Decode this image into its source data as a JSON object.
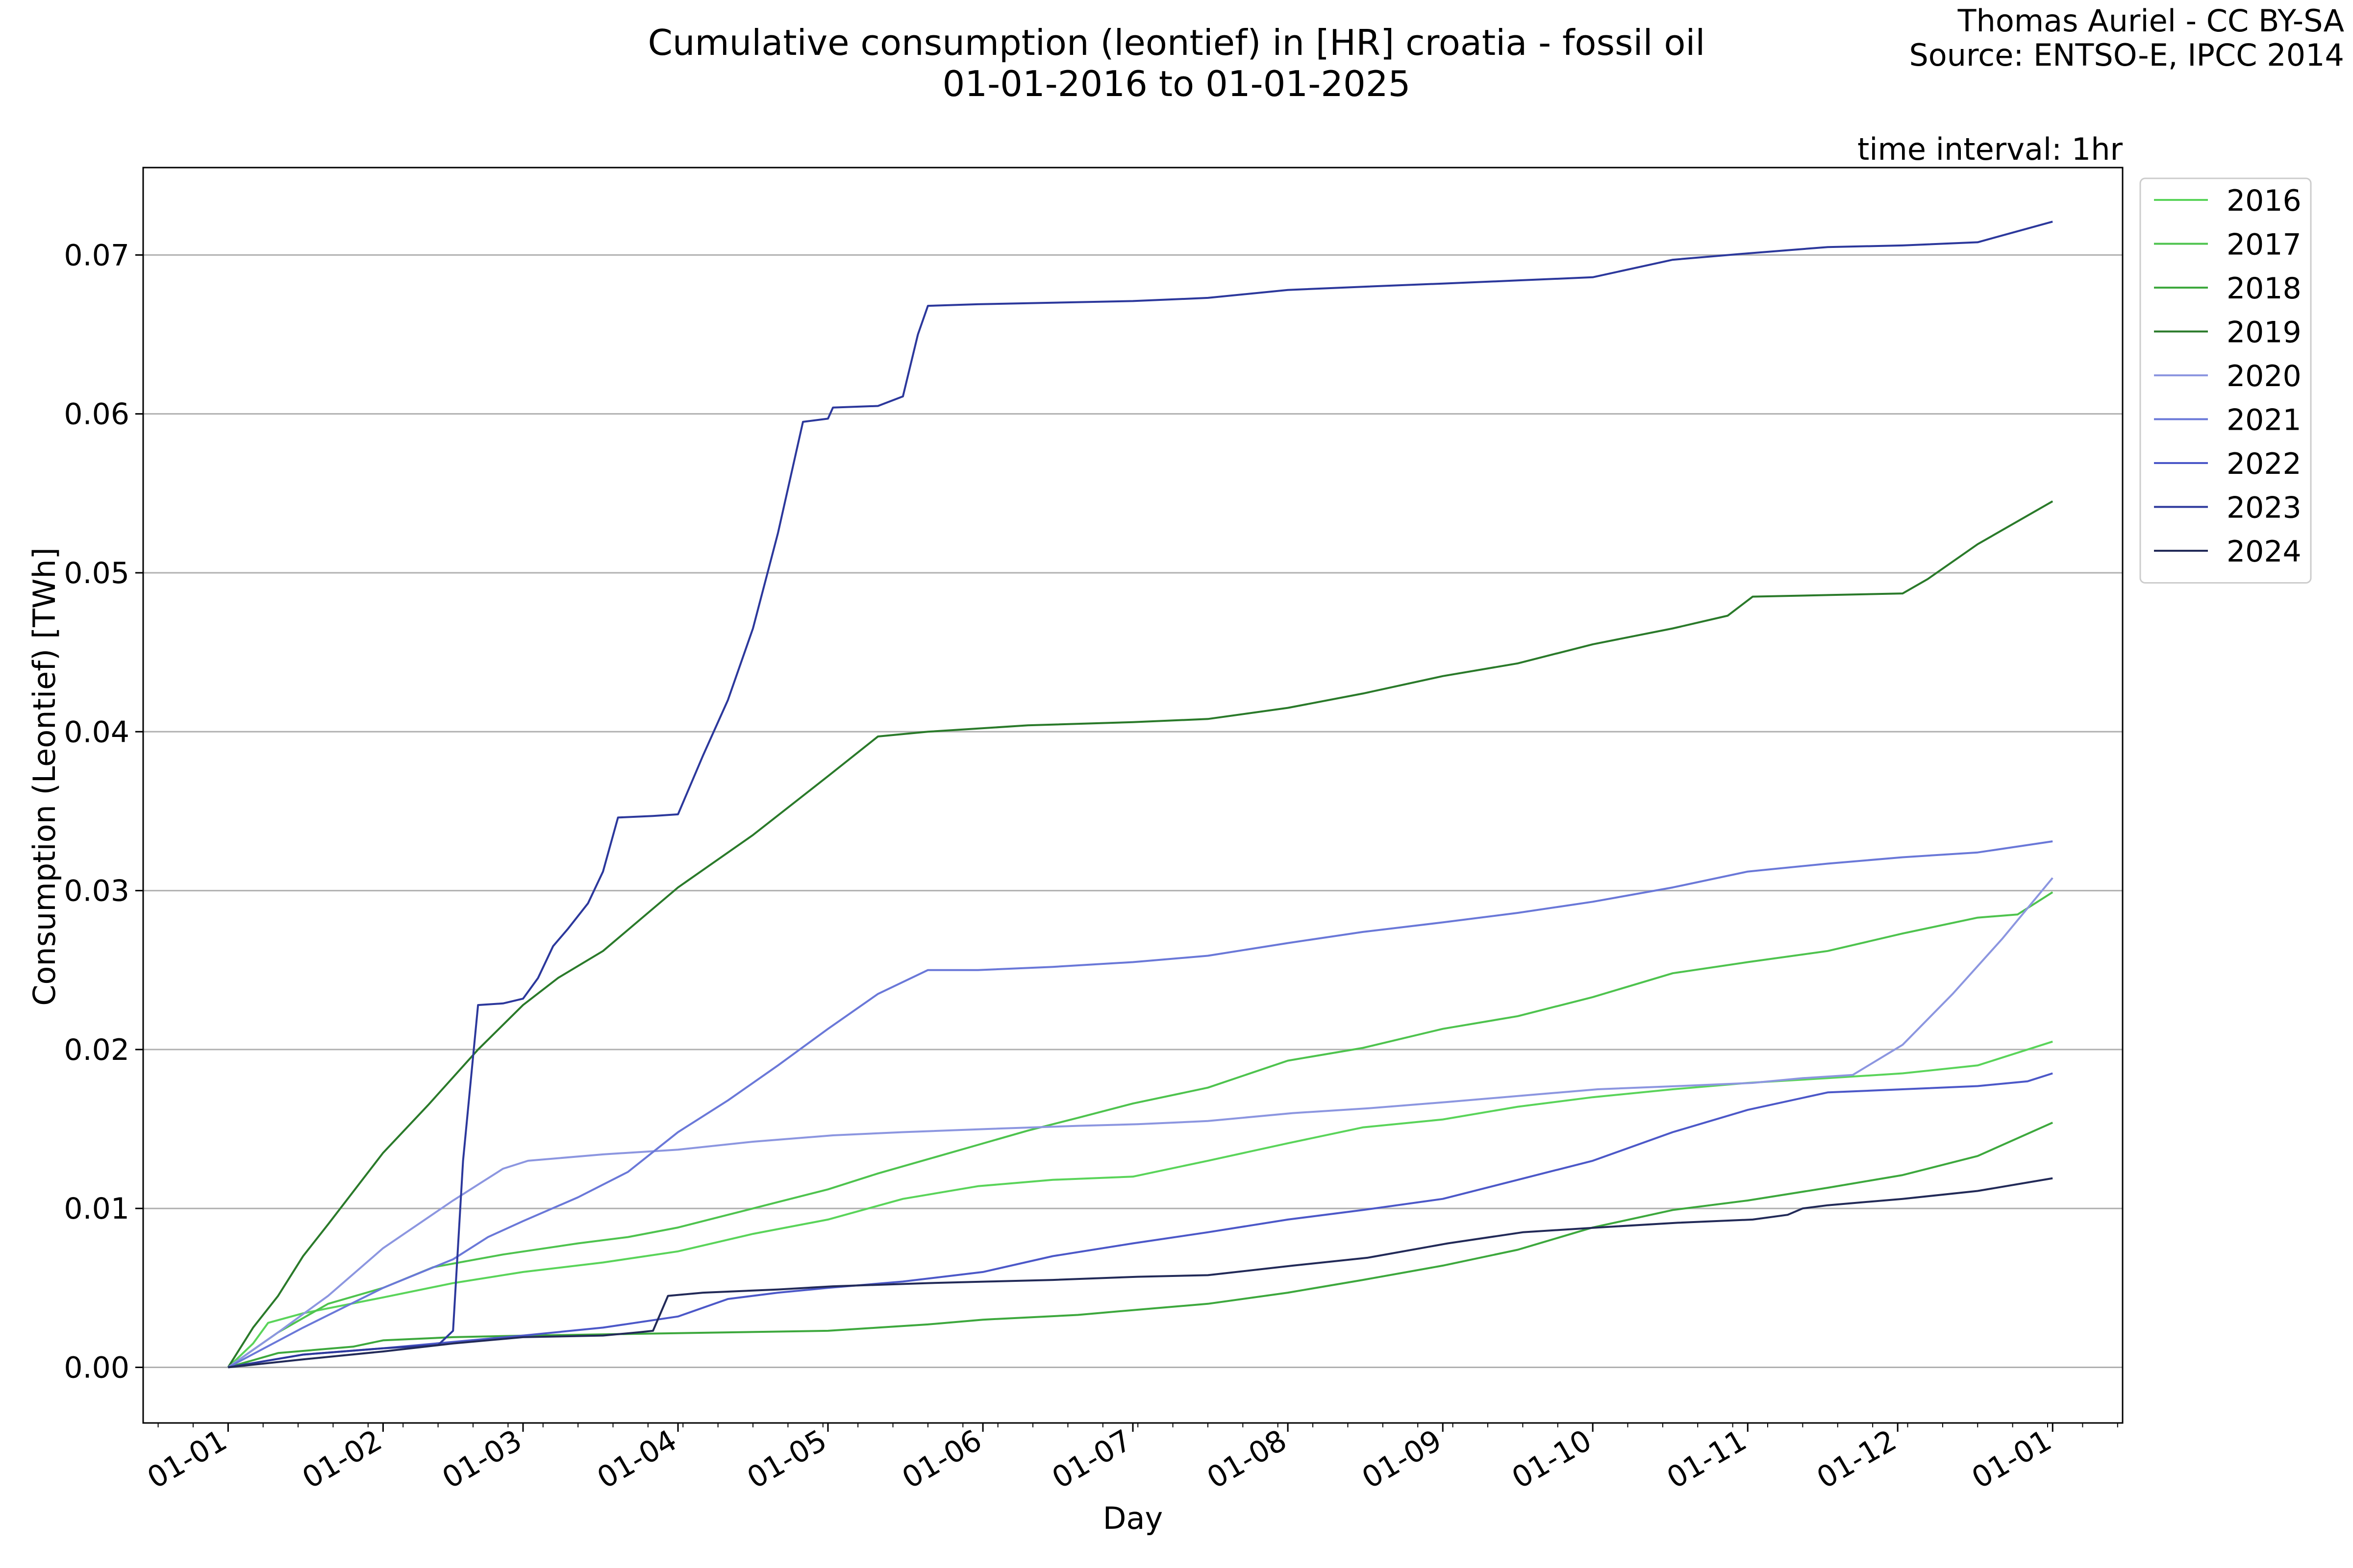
{
  "chart_data": {
    "type": "line",
    "title_line1": "Cumulative consumption (leontief) in [HR] croatia - fossil oil",
    "title_line2": "01-01-2016 to 01-01-2025",
    "credit_line1": "Thomas Auriel - CC BY-SA",
    "credit_line2": "Source: ENTSO-E, IPCC 2014",
    "interval_label": "time interval: 1hr",
    "xlabel": "Day",
    "ylabel": "Consumption (Leontief) [TWh]",
    "x_ticks": [
      "01-01",
      "01-02",
      "01-03",
      "01-04",
      "01-05",
      "01-06",
      "01-07",
      "01-08",
      "01-09",
      "01-10",
      "01-11",
      "01-12",
      "01-01"
    ],
    "y_ticks": [
      "0.00",
      "0.01",
      "0.02",
      "0.03",
      "0.04",
      "0.05",
      "0.06",
      "0.07"
    ],
    "xlim": [
      -17,
      379
    ],
    "ylim": [
      -0.0035,
      0.0755
    ],
    "grid": "horizontal",
    "legend_position": "upper-right-outside",
    "series": [
      {
        "name": "2016",
        "color": "#5ad45a",
        "points": [
          [
            0,
            0
          ],
          [
            5,
            0.0015
          ],
          [
            8,
            0.0028
          ],
          [
            15,
            0.0034
          ],
          [
            31,
            0.0044
          ],
          [
            45,
            0.0053
          ],
          [
            59,
            0.006
          ],
          [
            75,
            0.0066
          ],
          [
            90,
            0.0073
          ],
          [
            105,
            0.0084
          ],
          [
            120,
            0.0093
          ],
          [
            135,
            0.0106
          ],
          [
            150,
            0.0114
          ],
          [
            165,
            0.0118
          ],
          [
            181,
            0.012
          ],
          [
            196,
            0.013
          ],
          [
            212,
            0.0141
          ],
          [
            227,
            0.0151
          ],
          [
            243,
            0.0156
          ],
          [
            258,
            0.0164
          ],
          [
            273,
            0.017
          ],
          [
            289,
            0.0175
          ],
          [
            304,
            0.0179
          ],
          [
            320,
            0.0182
          ],
          [
            335,
            0.0185
          ],
          [
            350,
            0.019
          ],
          [
            365,
            0.0205
          ]
        ]
      },
      {
        "name": "2017",
        "color": "#4ec34e",
        "points": [
          [
            0,
            0
          ],
          [
            10,
            0.0022
          ],
          [
            20,
            0.004
          ],
          [
            31,
            0.005
          ],
          [
            41,
            0.0063
          ],
          [
            55,
            0.0071
          ],
          [
            70,
            0.0078
          ],
          [
            80,
            0.0082
          ],
          [
            90,
            0.0088
          ],
          [
            100,
            0.0096
          ],
          [
            110,
            0.0104
          ],
          [
            120,
            0.0112
          ],
          [
            130,
            0.0122
          ],
          [
            140,
            0.0131
          ],
          [
            150,
            0.014
          ],
          [
            160,
            0.0149
          ],
          [
            170,
            0.0157
          ],
          [
            181,
            0.0166
          ],
          [
            196,
            0.0176
          ],
          [
            212,
            0.0193
          ],
          [
            227,
            0.0201
          ],
          [
            243,
            0.0213
          ],
          [
            258,
            0.0221
          ],
          [
            273,
            0.0233
          ],
          [
            289,
            0.0248
          ],
          [
            304,
            0.0255
          ],
          [
            320,
            0.0262
          ],
          [
            335,
            0.0273
          ],
          [
            350,
            0.0283
          ],
          [
            358,
            0.0285
          ],
          [
            365,
            0.0299
          ]
        ]
      },
      {
        "name": "2018",
        "color": "#3da83d",
        "points": [
          [
            0,
            0
          ],
          [
            10,
            0.0009
          ],
          [
            25,
            0.0013
          ],
          [
            31,
            0.0017
          ],
          [
            45,
            0.0019
          ],
          [
            60,
            0.002
          ],
          [
            80,
            0.0021
          ],
          [
            100,
            0.0022
          ],
          [
            120,
            0.0023
          ],
          [
            130,
            0.0025
          ],
          [
            140,
            0.0027
          ],
          [
            151,
            0.003
          ],
          [
            170,
            0.0033
          ],
          [
            181,
            0.0036
          ],
          [
            196,
            0.004
          ],
          [
            212,
            0.0047
          ],
          [
            227,
            0.0055
          ],
          [
            243,
            0.0064
          ],
          [
            258,
            0.0074
          ],
          [
            273,
            0.0088
          ],
          [
            289,
            0.0099
          ],
          [
            304,
            0.0105
          ],
          [
            320,
            0.0113
          ],
          [
            335,
            0.0121
          ],
          [
            350,
            0.0133
          ],
          [
            365,
            0.0154
          ]
        ]
      },
      {
        "name": "2019",
        "color": "#2a7a2a",
        "points": [
          [
            0,
            0
          ],
          [
            5,
            0.0025
          ],
          [
            10,
            0.0045
          ],
          [
            15,
            0.007
          ],
          [
            20,
            0.009
          ],
          [
            31,
            0.0135
          ],
          [
            40,
            0.0165
          ],
          [
            50,
            0.02
          ],
          [
            59,
            0.0228
          ],
          [
            66,
            0.0245
          ],
          [
            75,
            0.0262
          ],
          [
            90,
            0.0302
          ],
          [
            105,
            0.0335
          ],
          [
            120,
            0.0372
          ],
          [
            130,
            0.0397
          ],
          [
            140,
            0.04
          ],
          [
            160,
            0.0404
          ],
          [
            181,
            0.0406
          ],
          [
            196,
            0.0408
          ],
          [
            212,
            0.0415
          ],
          [
            227,
            0.0424
          ],
          [
            243,
            0.0435
          ],
          [
            258,
            0.0443
          ],
          [
            273,
            0.0455
          ],
          [
            289,
            0.0465
          ],
          [
            300,
            0.0473
          ],
          [
            305,
            0.0485
          ],
          [
            320,
            0.0486
          ],
          [
            335,
            0.0487
          ],
          [
            340,
            0.0496
          ],
          [
            350,
            0.0518
          ],
          [
            365,
            0.0545
          ]
        ]
      },
      {
        "name": "2020",
        "color": "#8c96e0",
        "points": [
          [
            0,
            0
          ],
          [
            10,
            0.0022
          ],
          [
            20,
            0.0045
          ],
          [
            31,
            0.0075
          ],
          [
            45,
            0.0105
          ],
          [
            55,
            0.0125
          ],
          [
            60,
            0.013
          ],
          [
            75,
            0.0134
          ],
          [
            90,
            0.0137
          ],
          [
            105,
            0.0142
          ],
          [
            121,
            0.0146
          ],
          [
            135,
            0.0148
          ],
          [
            152,
            0.015
          ],
          [
            170,
            0.0152
          ],
          [
            182,
            0.0153
          ],
          [
            196,
            0.0155
          ],
          [
            213,
            0.016
          ],
          [
            228,
            0.0163
          ],
          [
            244,
            0.0167
          ],
          [
            259,
            0.0171
          ],
          [
            274,
            0.0175
          ],
          [
            290,
            0.0177
          ],
          [
            305,
            0.0179
          ],
          [
            315,
            0.0182
          ],
          [
            325,
            0.0184
          ],
          [
            335,
            0.0203
          ],
          [
            345,
            0.0235
          ],
          [
            355,
            0.027
          ],
          [
            365,
            0.0308
          ]
        ]
      },
      {
        "name": "2021",
        "color": "#6a78d8",
        "points": [
          [
            0,
            0
          ],
          [
            15,
            0.0025
          ],
          [
            31,
            0.005
          ],
          [
            45,
            0.0068
          ],
          [
            52,
            0.0082
          ],
          [
            59,
            0.0092
          ],
          [
            70,
            0.0107
          ],
          [
            80,
            0.0123
          ],
          [
            90,
            0.0148
          ],
          [
            100,
            0.0168
          ],
          [
            110,
            0.019
          ],
          [
            120,
            0.0213
          ],
          [
            130,
            0.0235
          ],
          [
            140,
            0.025
          ],
          [
            150,
            0.025
          ],
          [
            165,
            0.0252
          ],
          [
            181,
            0.0255
          ],
          [
            196,
            0.0259
          ],
          [
            212,
            0.0267
          ],
          [
            227,
            0.0274
          ],
          [
            243,
            0.028
          ],
          [
            258,
            0.0286
          ],
          [
            273,
            0.0293
          ],
          [
            289,
            0.0302
          ],
          [
            304,
            0.0312
          ],
          [
            320,
            0.0317
          ],
          [
            335,
            0.0321
          ],
          [
            350,
            0.0324
          ],
          [
            365,
            0.0331
          ]
        ]
      },
      {
        "name": "2022",
        "color": "#4c58c8",
        "points": [
          [
            0,
            0
          ],
          [
            15,
            0.0008
          ],
          [
            31,
            0.0012
          ],
          [
            45,
            0.0016
          ],
          [
            59,
            0.002
          ],
          [
            75,
            0.0025
          ],
          [
            90,
            0.0032
          ],
          [
            100,
            0.0043
          ],
          [
            110,
            0.0047
          ],
          [
            120,
            0.005
          ],
          [
            135,
            0.0054
          ],
          [
            151,
            0.006
          ],
          [
            165,
            0.007
          ],
          [
            181,
            0.0078
          ],
          [
            196,
            0.0085
          ],
          [
            212,
            0.0093
          ],
          [
            227,
            0.0099
          ],
          [
            243,
            0.0106
          ],
          [
            258,
            0.0118
          ],
          [
            273,
            0.013
          ],
          [
            289,
            0.0148
          ],
          [
            304,
            0.0162
          ],
          [
            320,
            0.0173
          ],
          [
            335,
            0.0175
          ],
          [
            350,
            0.0177
          ],
          [
            360,
            0.018
          ],
          [
            365,
            0.0185
          ]
        ]
      },
      {
        "name": "2023",
        "color": "#2c389c",
        "points": [
          [
            0,
            0
          ],
          [
            15,
            0.0008
          ],
          [
            31,
            0.0012
          ],
          [
            42,
            0.0014
          ],
          [
            45,
            0.0023
          ],
          [
            47,
            0.013
          ],
          [
            50,
            0.0228
          ],
          [
            55,
            0.0229
          ],
          [
            59,
            0.0232
          ],
          [
            62,
            0.0245
          ],
          [
            65,
            0.0265
          ],
          [
            68,
            0.0276
          ],
          [
            72,
            0.0292
          ],
          [
            75,
            0.0312
          ],
          [
            78,
            0.0346
          ],
          [
            85,
            0.0347
          ],
          [
            90,
            0.0348
          ],
          [
            95,
            0.0385
          ],
          [
            100,
            0.042
          ],
          [
            105,
            0.0465
          ],
          [
            110,
            0.0525
          ],
          [
            115,
            0.0595
          ],
          [
            120,
            0.0597
          ],
          [
            121,
            0.0604
          ],
          [
            130,
            0.0605
          ],
          [
            135,
            0.0611
          ],
          [
            138,
            0.065
          ],
          [
            140,
            0.0668
          ],
          [
            150,
            0.0669
          ],
          [
            165,
            0.067
          ],
          [
            181,
            0.0671
          ],
          [
            196,
            0.0673
          ],
          [
            212,
            0.0678
          ],
          [
            227,
            0.068
          ],
          [
            243,
            0.0682
          ],
          [
            258,
            0.0684
          ],
          [
            273,
            0.0686
          ],
          [
            289,
            0.0697
          ],
          [
            304,
            0.0701
          ],
          [
            320,
            0.0705
          ],
          [
            335,
            0.0706
          ],
          [
            350,
            0.0708
          ],
          [
            365,
            0.0721
          ]
        ]
      },
      {
        "name": "2024",
        "color": "#222a58",
        "points": [
          [
            0,
            0
          ],
          [
            15,
            0.0005
          ],
          [
            31,
            0.001
          ],
          [
            45,
            0.0015
          ],
          [
            59,
            0.0019
          ],
          [
            75,
            0.002
          ],
          [
            82,
            0.0022
          ],
          [
            85,
            0.0023
          ],
          [
            88,
            0.0045
          ],
          [
            95,
            0.0047
          ],
          [
            110,
            0.0049
          ],
          [
            121,
            0.0051
          ],
          [
            140,
            0.0053
          ],
          [
            152,
            0.0054
          ],
          [
            165,
            0.0055
          ],
          [
            182,
            0.0057
          ],
          [
            196,
            0.0058
          ],
          [
            213,
            0.0064
          ],
          [
            228,
            0.0069
          ],
          [
            244,
            0.0078
          ],
          [
            259,
            0.0085
          ],
          [
            274,
            0.0088
          ],
          [
            290,
            0.0091
          ],
          [
            305,
            0.0093
          ],
          [
            312,
            0.0096
          ],
          [
            315,
            0.01
          ],
          [
            320,
            0.0102
          ],
          [
            335,
            0.0106
          ],
          [
            350,
            0.0111
          ],
          [
            365,
            0.0119
          ]
        ]
      }
    ]
  }
}
